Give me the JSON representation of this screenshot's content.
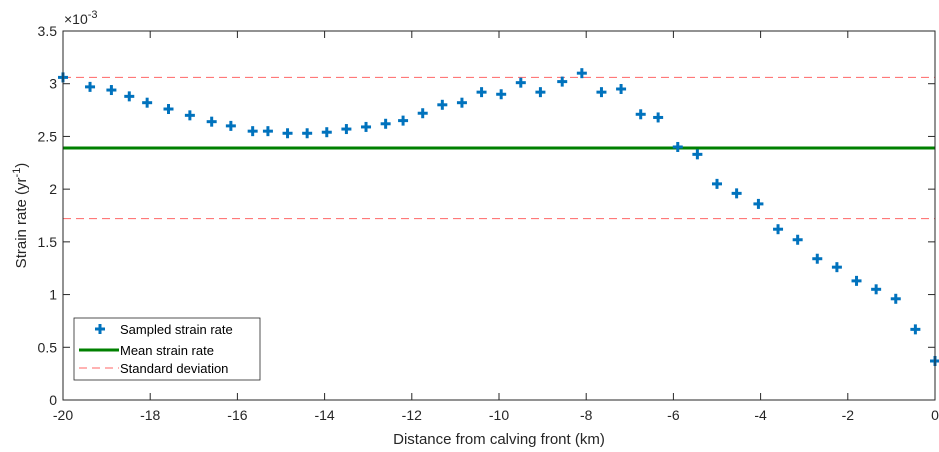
{
  "chart_data": {
    "type": "scatter",
    "xlabel": "Distance from calving front (km)",
    "ylabel_main": "Strain rate (yr",
    "ylabel_sup": "-1",
    "ylabel_close": ")",
    "y_exponent_base": "×10",
    "y_exponent_power": "-3",
    "xlim": [
      -20,
      0
    ],
    "ylim": [
      0,
      3.5
    ],
    "x_ticks": [
      -20,
      -18,
      -16,
      -14,
      -12,
      -10,
      -8,
      -6,
      -4,
      -2,
      0
    ],
    "x_tick_labels": [
      "-20",
      "-18",
      "-16",
      "-14",
      "-12",
      "-10",
      "-8",
      "-6",
      "-4",
      "-2",
      "0"
    ],
    "y_ticks": [
      0,
      0.5,
      1,
      1.5,
      2,
      2.5,
      3,
      3.5
    ],
    "y_tick_labels": [
      "0",
      "0.5",
      "1",
      "1.5",
      "2",
      "2.5",
      "3",
      "3.5"
    ],
    "grid": false,
    "legend_position": "bottom-left",
    "series": [
      {
        "name": "Sampled strain rate",
        "marker": "plus",
        "color": "#0072BD",
        "x": [
          -20.0,
          -19.38,
          -18.89,
          -18.48,
          -18.07,
          -17.58,
          -17.09,
          -16.59,
          -16.15,
          -15.65,
          -15.3,
          -14.85,
          -14.4,
          -13.95,
          -13.5,
          -13.05,
          -12.6,
          -12.2,
          -11.75,
          -11.3,
          -10.85,
          -10.4,
          -9.95,
          -9.5,
          -9.05,
          -8.55,
          -8.1,
          -7.65,
          -7.2,
          -6.75,
          -6.35,
          -5.9,
          -5.45,
          -5.0,
          -4.55,
          -4.05,
          -3.6,
          -3.15,
          -2.7,
          -2.25,
          -1.8,
          -1.35,
          -0.9,
          -0.45,
          0.0
        ],
        "y": [
          3.06,
          2.97,
          2.94,
          2.88,
          2.82,
          2.76,
          2.7,
          2.64,
          2.6,
          2.55,
          2.55,
          2.53,
          2.53,
          2.54,
          2.57,
          2.59,
          2.62,
          2.65,
          2.72,
          2.8,
          2.82,
          2.92,
          2.9,
          3.01,
          2.92,
          3.02,
          3.1,
          2.92,
          2.95,
          2.71,
          2.68,
          2.4,
          2.33,
          2.05,
          1.96,
          1.86,
          1.62,
          1.52,
          1.34,
          1.26,
          1.13,
          1.05,
          0.96,
          0.67,
          0.37
        ]
      },
      {
        "name": "Mean strain rate",
        "type": "hline",
        "color": "#008000",
        "value": 2.39
      },
      {
        "name": "Standard deviation",
        "type": "hline-dashed",
        "color": "#FF0000",
        "values": [
          3.06,
          1.72
        ]
      }
    ]
  }
}
